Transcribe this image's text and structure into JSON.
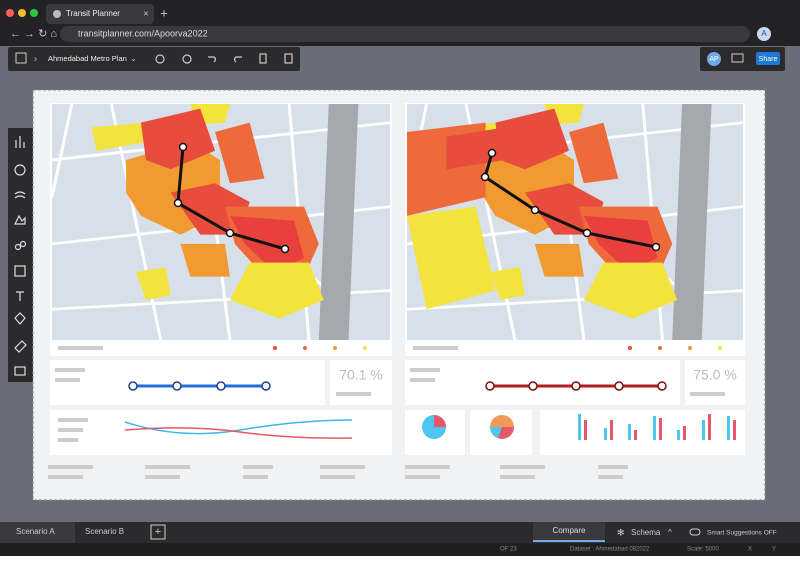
{
  "browser": {
    "tab_title": "Transit Planner",
    "url": "transitplanner.com/Apoorva2022",
    "profile": "A"
  },
  "toolbar": {
    "project": "Ahmedabad Metro Plan",
    "user": "AP",
    "share": "Share"
  },
  "panels": [
    {
      "kpi": "70.1 %"
    },
    {
      "kpi": "75.0 %"
    }
  ],
  "bottom_tabs": {
    "tabs": [
      "Scenario A",
      "Scenario B"
    ],
    "compare": "Compare",
    "schema": "Schema",
    "suggestions": "Smart Suggestions OFF"
  },
  "status": {
    "page": "OF 23",
    "dataset": "Dataset : Ahmedabad 082022",
    "scale": "Scale: 5000",
    "x": "X",
    "y": "Y"
  }
}
